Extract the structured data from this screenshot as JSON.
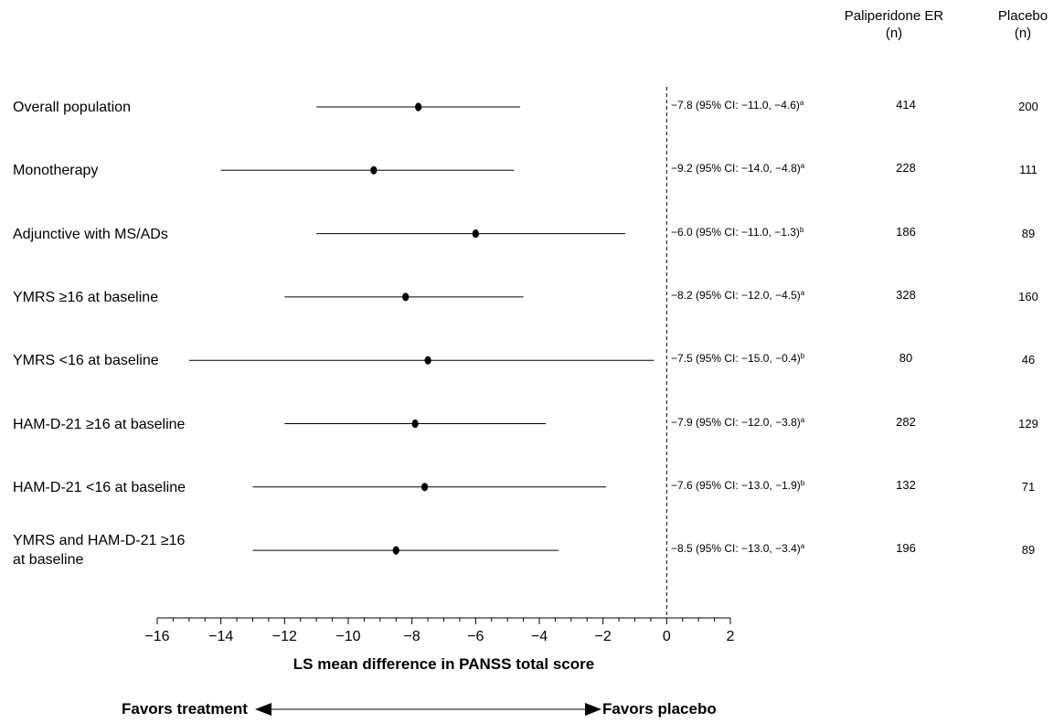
{
  "columns": {
    "treatment_header_line1": "Paliperidone ER",
    "treatment_header_line2": "(n)",
    "placebo_header_line1": "Placebo",
    "placebo_header_line2": "(n)"
  },
  "chart_data": {
    "type": "forest",
    "xlabel": "LS mean difference in PANSS total score",
    "xlim": [
      -16,
      2
    ],
    "major_ticks": [
      -16,
      -14,
      -12,
      -10,
      -8,
      -6,
      -4,
      -2,
      0,
      2
    ],
    "minor_tick_step": 0.5,
    "reference_line": 0,
    "rows": [
      {
        "label": "Overall population",
        "label_line2": "",
        "estimate": -7.8,
        "ci_low": -11.0,
        "ci_high": -4.6,
        "ci_text": "−7.8 (95% CI: −11.0, −4.6)",
        "footnote": "a",
        "n_treatment": "414",
        "n_placebo": "200"
      },
      {
        "label": "Monotherapy",
        "label_line2": "",
        "estimate": -9.2,
        "ci_low": -14.0,
        "ci_high": -4.8,
        "ci_text": "−9.2 (95% CI: −14.0, −4.8)",
        "footnote": "a",
        "n_treatment": "228",
        "n_placebo": "111"
      },
      {
        "label": "Adjunctive with MS/ADs",
        "label_line2": "",
        "estimate": -6.0,
        "ci_low": -11.0,
        "ci_high": -1.3,
        "ci_text": "−6.0 (95% CI: −11.0, −1.3)",
        "footnote": "b",
        "n_treatment": "186",
        "n_placebo": "89"
      },
      {
        "label": "YMRS ≥16 at baseline",
        "label_line2": "",
        "estimate": -8.2,
        "ci_low": -12.0,
        "ci_high": -4.5,
        "ci_text": "−8.2 (95% CI: −12.0, −4.5)",
        "footnote": "a",
        "n_treatment": "328",
        "n_placebo": "160"
      },
      {
        "label": "YMRS <16 at baseline",
        "label_line2": "",
        "estimate": -7.5,
        "ci_low": -15.0,
        "ci_high": -0.4,
        "ci_text": "−7.5 (95% CI: −15.0, −0.4)",
        "footnote": "b",
        "n_treatment": "80",
        "n_placebo": "46"
      },
      {
        "label": "HAM-D-21 ≥16 at baseline",
        "label_line2": "",
        "estimate": -7.9,
        "ci_low": -12.0,
        "ci_high": -3.8,
        "ci_text": "−7.9 (95% CI: −12.0, −3.8)",
        "footnote": "a",
        "n_treatment": "282",
        "n_placebo": "129"
      },
      {
        "label": "HAM-D-21 <16 at baseline",
        "label_line2": "",
        "estimate": -7.6,
        "ci_low": -13.0,
        "ci_high": -1.9,
        "ci_text": "−7.6 (95% CI: −13.0, −1.9)",
        "footnote": "b",
        "n_treatment": "132",
        "n_placebo": "71"
      },
      {
        "label": "YMRS and HAM-D-21 ≥16",
        "label_line2": "at baseline",
        "estimate": -8.5,
        "ci_low": -13.0,
        "ci_high": -3.4,
        "ci_text": "−8.5 (95% CI: −13.0, −3.4)",
        "footnote": "a",
        "n_treatment": "196",
        "n_placebo": "89"
      }
    ],
    "favors_left": "Favors treatment",
    "favors_right": "Favors placebo"
  }
}
